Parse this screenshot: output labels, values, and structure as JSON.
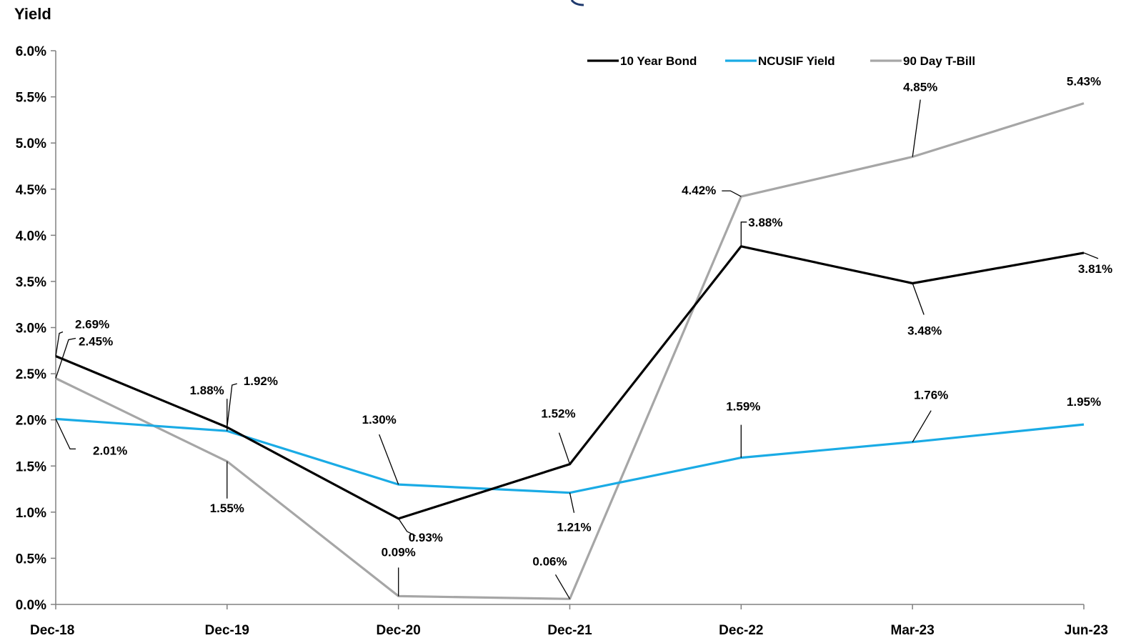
{
  "chart_data": {
    "type": "line",
    "ylabel": "Yield",
    "categories": [
      "Dec-18",
      "Dec-19",
      "Dec-20",
      "Dec-21",
      "Dec-22",
      "Mar-23",
      "Jun-23"
    ],
    "ylim": [
      0,
      6
    ],
    "yticks": [
      "0.0%",
      "0.5%",
      "1.0%",
      "1.5%",
      "2.0%",
      "2.5%",
      "3.0%",
      "3.5%",
      "4.0%",
      "4.5%",
      "5.0%",
      "5.5%",
      "6.0%"
    ],
    "legend_position": "top-right",
    "grid": false,
    "series": [
      {
        "name": "10 Year Bond",
        "color": "#000000",
        "values": [
          2.69,
          1.92,
          0.93,
          1.52,
          3.88,
          3.48,
          3.81
        ],
        "labels": [
          "2.69%",
          "1.92%",
          "0.93%",
          "1.52%",
          "3.88%",
          "3.48%",
          "3.81%"
        ]
      },
      {
        "name": "NCUSIF Yield",
        "color": "#1aabe5",
        "values": [
          2.01,
          1.88,
          1.3,
          1.21,
          1.59,
          1.76,
          1.95
        ],
        "labels": [
          "2.01%",
          "1.88%",
          "1.30%",
          "1.21%",
          "1.59%",
          "1.76%",
          "1.95%"
        ]
      },
      {
        "name": "90 Day T-Bill",
        "color": "#a6a6a6",
        "values": [
          2.45,
          1.55,
          0.09,
          0.06,
          4.42,
          4.85,
          5.43
        ],
        "labels": [
          "2.45%",
          "1.55%",
          "0.09%",
          "0.06%",
          "4.42%",
          "4.85%",
          "5.43%"
        ]
      }
    ]
  }
}
